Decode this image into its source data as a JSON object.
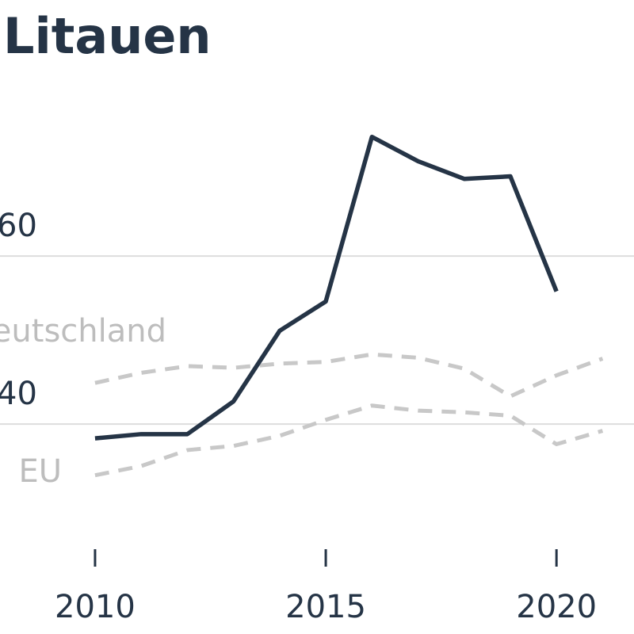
{
  "chart_data": {
    "type": "line",
    "title": "Litauen",
    "x": [
      2010,
      2011,
      2012,
      2013,
      2014,
      2015,
      2016,
      2017,
      2018,
      2019,
      2020,
      2021
    ],
    "series": [
      {
        "color": "#253446",
        "dashed": false,
        "values": [
          38.3,
          38.8,
          38.8,
          42.7,
          51.1,
          54.6,
          74.2,
          71.3,
          69.2,
          69.5,
          55.8,
          null
        ]
      },
      {
        "name": "Deutschland",
        "color": "#c8c8c8",
        "dashed": true,
        "values": [
          44.9,
          46.1,
          46.9,
          46.7,
          47.2,
          47.4,
          48.3,
          47.9,
          46.6,
          43.3,
          45.8,
          47.8
        ]
      },
      {
        "name": "EU",
        "color": "#c8c8c8",
        "dashed": true,
        "values": [
          33.9,
          35.0,
          36.9,
          37.4,
          38.6,
          40.5,
          42.2,
          41.6,
          41.4,
          41.0,
          37.6,
          39.2
        ]
      }
    ],
    "xlim": [
      2007.94,
      2021.68
    ],
    "xticks": [
      2010,
      2015,
      2020
    ],
    "ylim": [
      15,
      90.5
    ],
    "yticks": [
      40,
      60
    ],
    "grid": true
  }
}
